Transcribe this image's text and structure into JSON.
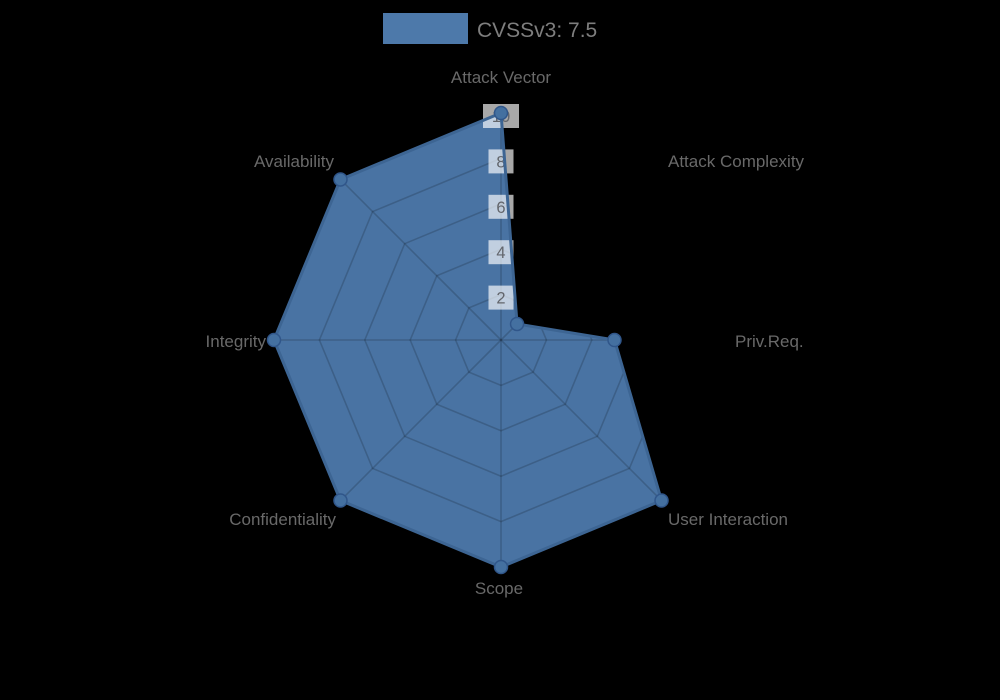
{
  "legend": {
    "label": "CVSSv3: 7.5"
  },
  "chart_data": {
    "type": "radar",
    "title": "CVSSv3: 7.5",
    "categories": [
      "Attack Vector",
      "Attack Complexity",
      "Priv.Req.",
      "User Interaction",
      "Scope",
      "Confidentiality",
      "Integrity",
      "Availability"
    ],
    "series": [
      {
        "name": "CVSSv3: 7.5",
        "values": [
          10,
          1,
          5,
          10,
          10,
          10,
          10,
          10
        ]
      }
    ],
    "ticks": [
      2,
      4,
      6,
      8,
      10
    ],
    "range": [
      0,
      10
    ],
    "grid_shape": "polygon",
    "rings": 5,
    "legend_position": "top-center",
    "colors": {
      "background": "#000000",
      "fill": "#4b77a8",
      "line": "#3d6593",
      "point_fill": "#4470a0",
      "point_stroke": "#30568a",
      "grid": "rgba(0,0,0,0.17)",
      "tick_backdrop": "rgba(255,255,255,0.66)",
      "tick_text": "#63666c",
      "label_text": "#696969",
      "legend_text": "#7e7e7e",
      "legend_swatch": "#4d79aa"
    }
  }
}
